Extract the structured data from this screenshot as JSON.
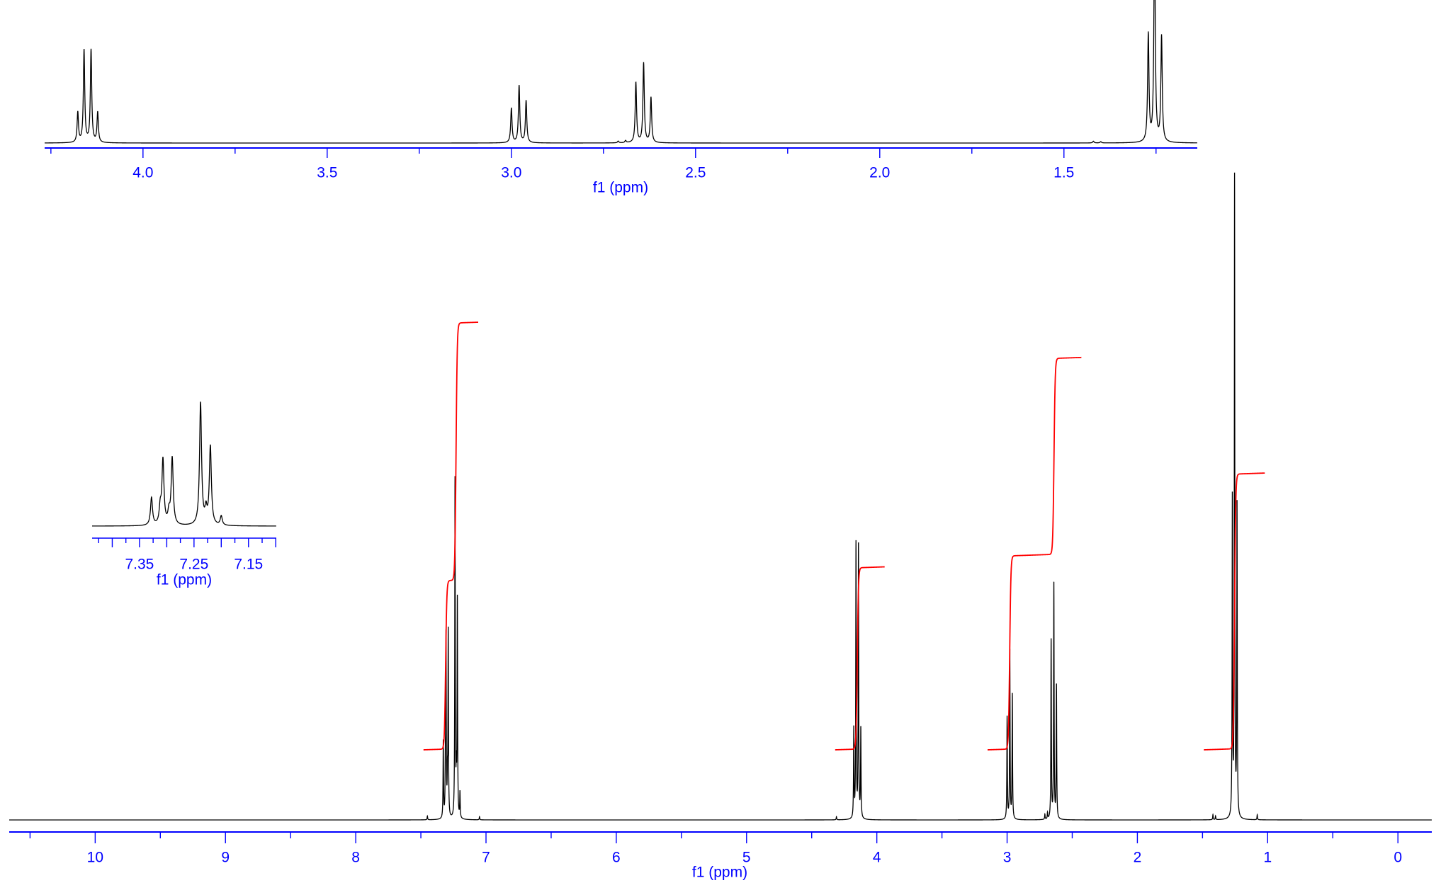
{
  "chart_data": [
    {
      "type": "line",
      "panel": "main spectrum",
      "xlabel": "f1 (ppm)",
      "xlim": [
        10.66,
        -0.26
      ],
      "x_reversed": true,
      "tick_labels": [
        "10",
        "9",
        "8",
        "7",
        "6",
        "5",
        "4",
        "3",
        "2",
        "1",
        "0"
      ],
      "grid": false,
      "colors": {
        "spectrum": "#000000",
        "axis": "#0000ff",
        "integral": "#ff0000"
      },
      "peaks": [
        {
          "ppm": 7.45,
          "height": 0.006
        },
        {
          "ppm": 7.328,
          "height": 0.12
        },
        {
          "ppm": 7.312,
          "height": 0.07
        },
        {
          "ppm": 7.307,
          "height": 0.28
        },
        {
          "ppm": 7.296,
          "height": 0.05
        },
        {
          "ppm": 7.29,
          "height": 0.29
        },
        {
          "ppm": 7.238,
          "height": 0.53
        },
        {
          "ppm": 7.228,
          "height": 0.06
        },
        {
          "ppm": 7.22,
          "height": 0.34
        },
        {
          "ppm": 7.2,
          "height": 0.04
        },
        {
          "ppm": 7.05,
          "height": 0.005
        },
        {
          "ppm": 4.31,
          "height": 0.005
        },
        {
          "ppm": 4.177,
          "height": 0.14
        },
        {
          "ppm": 4.16,
          "height": 0.43
        },
        {
          "ppm": 4.141,
          "height": 0.43
        },
        {
          "ppm": 4.123,
          "height": 0.14
        },
        {
          "ppm": 3.0,
          "height": 0.16
        },
        {
          "ppm": 2.979,
          "height": 0.265
        },
        {
          "ppm": 2.96,
          "height": 0.195
        },
        {
          "ppm": 2.71,
          "height": 0.008
        },
        {
          "ppm": 2.69,
          "height": 0.01
        },
        {
          "ppm": 2.662,
          "height": 0.28
        },
        {
          "ppm": 2.641,
          "height": 0.37
        },
        {
          "ppm": 2.621,
          "height": 0.21
        },
        {
          "ppm": 1.42,
          "height": 0.008
        },
        {
          "ppm": 1.4,
          "height": 0.006
        },
        {
          "ppm": 1.271,
          "height": 0.5
        },
        {
          "ppm": 1.254,
          "height": 1.0
        },
        {
          "ppm": 1.235,
          "height": 0.49
        },
        {
          "ppm": 1.08,
          "height": 0.008
        }
      ],
      "integrals": [
        {
          "from": 7.48,
          "to": 7.06,
          "steps": [
            {
              "ppm": 7.31,
              "value": 1.84
            },
            {
              "ppm": 7.23,
              "value": 2.81
            }
          ]
        },
        {
          "from": 4.32,
          "to": 3.94,
          "steps": [
            {
              "ppm": 4.15,
              "value": 1.98
            }
          ]
        },
        {
          "from": 3.15,
          "to": 2.43,
          "steps": [
            {
              "ppm": 2.98,
              "value": 2.11
            },
            {
              "ppm": 2.64,
              "value": 2.14
            }
          ]
        },
        {
          "from": 1.49,
          "to": 1.02,
          "steps": [
            {
              "ppm": 1.254,
              "value": 3.0
            }
          ]
        }
      ]
    },
    {
      "type": "line",
      "panel": "top expansion",
      "xlabel": "f1 (ppm)",
      "xlim": [
        4.267,
        1.138
      ],
      "x_reversed": true,
      "tick_labels": [
        "4.0",
        "3.5",
        "3.0",
        "2.5",
        "2.0",
        "1.5"
      ]
    },
    {
      "type": "line",
      "panel": "aromatic expansion",
      "xlabel": "f1 (ppm)",
      "xlim": [
        7.437,
        7.099
      ],
      "x_reversed": true,
      "tick_labels": [
        "7.35",
        "7.25",
        "7.15"
      ]
    }
  ]
}
